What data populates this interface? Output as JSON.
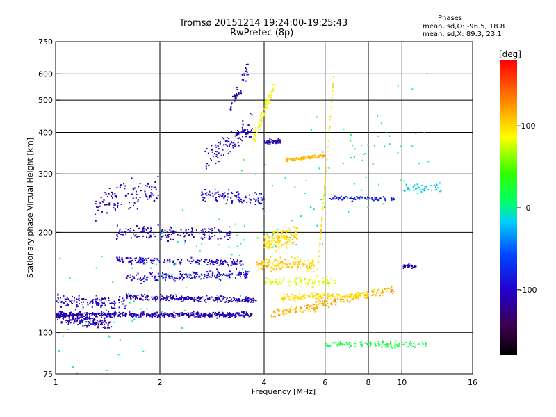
{
  "chart_data": {
    "type": "scatter",
    "title": "Tromsø 20151214 19:24:00-19:25:43",
    "subtitle": "RwPretec (8p)",
    "xlabel": "Frequency [MHz]",
    "ylabel": "Stationary phase Virtual Height [km]",
    "x_scale": "log",
    "y_scale": "log",
    "xlim": [
      1,
      16
    ],
    "ylim": [
      75,
      750
    ],
    "x_ticks": [
      1,
      2,
      4,
      6,
      8,
      10,
      16
    ],
    "y_ticks": [
      75,
      100,
      200,
      300,
      400,
      500,
      600,
      750
    ],
    "x_gridlines": [
      2,
      4,
      6,
      8,
      10
    ],
    "y_gridlines": [
      100,
      200,
      300,
      400,
      500,
      600
    ],
    "grid": true,
    "phase_box": {
      "heading": "Phases",
      "line_o": "mean, sd,O: -96.5, 18.8",
      "line_x": "mean, sd,X: 89.3, 23.1"
    },
    "colorbar": {
      "label": "[deg]",
      "range": [
        -180,
        180
      ],
      "ticks": [
        100,
        0,
        -100
      ],
      "placement": "right"
    },
    "traces": [
      {
        "name": "",
        "x_from": 1.0,
        "x_to": 3.7,
        "y_from": 113,
        "y_to": 113,
        "phase": -110,
        "spread": 0.012,
        "n": 480
      },
      {
        "name": "",
        "x_from": 1.0,
        "x_to": 1.45,
        "y_from": 112,
        "y_to": 106,
        "phase": -110,
        "spread": 0.025,
        "n": 160
      },
      {
        "name": "",
        "x_from": 1.0,
        "x_to": 1.6,
        "y_from": 125,
        "y_to": 122,
        "phase": -105,
        "spread": 0.03,
        "n": 120
      },
      {
        "name": "",
        "x_from": 1.6,
        "x_to": 3.8,
        "y_from": 128,
        "y_to": 125,
        "phase": -108,
        "spread": 0.012,
        "n": 240
      },
      {
        "name": "",
        "x_from": 1.6,
        "x_to": 3.6,
        "y_from": 145,
        "y_to": 150,
        "phase": -95,
        "spread": 0.02,
        "n": 200
      },
      {
        "name": "",
        "x_from": 1.5,
        "x_to": 3.5,
        "y_from": 165,
        "y_to": 162,
        "phase": -100,
        "spread": 0.015,
        "n": 180
      },
      {
        "name": "",
        "x_from": 1.5,
        "x_to": 3.2,
        "y_from": 200,
        "y_to": 198,
        "phase": -105,
        "spread": 0.03,
        "n": 150
      },
      {
        "name": "",
        "x_from": 1.3,
        "x_to": 2.0,
        "y_from": 240,
        "y_to": 270,
        "phase": -110,
        "spread": 0.06,
        "n": 110
      },
      {
        "name": "",
        "x_from": 2.6,
        "x_to": 4.0,
        "y_from": 260,
        "y_to": 250,
        "phase": -95,
        "spread": 0.03,
        "n": 110
      },
      {
        "name": "",
        "x_from": 2.7,
        "x_to": 3.7,
        "y_from": 330,
        "y_to": 420,
        "phase": -105,
        "spread": 0.05,
        "n": 110
      },
      {
        "name": "",
        "x_from": 3.2,
        "x_to": 3.6,
        "y_from": 480,
        "y_to": 620,
        "phase": -110,
        "spread": 0.04,
        "n": 40
      },
      {
        "name": "",
        "x_from": 3.7,
        "x_to": 4.3,
        "y_from": 370,
        "y_to": 560,
        "phase": 90,
        "spread": 0.03,
        "n": 80
      },
      {
        "name": "",
        "x_from": 4.0,
        "x_to": 4.5,
        "y_from": 375,
        "y_to": 375,
        "phase": -110,
        "spread": 0.01,
        "n": 50
      },
      {
        "name": "",
        "x_from": 4.6,
        "x_to": 6.0,
        "y_from": 330,
        "y_to": 340,
        "phase": 115,
        "spread": 0.008,
        "n": 90
      },
      {
        "name": "",
        "x_from": 4.0,
        "x_to": 5.0,
        "y_from": 185,
        "y_to": 200,
        "phase": 100,
        "spread": 0.04,
        "n": 160
      },
      {
        "name": "",
        "x_from": 3.8,
        "x_to": 5.6,
        "y_from": 160,
        "y_to": 160,
        "phase": 105,
        "spread": 0.03,
        "n": 150
      },
      {
        "name": "",
        "x_from": 4.2,
        "x_to": 9.5,
        "y_from": 113,
        "y_to": 135,
        "phase": 115,
        "spread": 0.02,
        "n": 210
      },
      {
        "name": "",
        "x_from": 4.5,
        "x_to": 8.0,
        "y_from": 127,
        "y_to": 130,
        "phase": 100,
        "spread": 0.015,
        "n": 150
      },
      {
        "name": "",
        "x_from": 4.0,
        "x_to": 6.5,
        "y_from": 142,
        "y_to": 142,
        "phase": 80,
        "spread": 0.02,
        "n": 90
      },
      {
        "name": "",
        "x_from": 6.2,
        "x_to": 9.5,
        "y_from": 253,
        "y_to": 253,
        "phase": -80,
        "spread": 0.01,
        "n": 80
      },
      {
        "name": "",
        "x_from": 10.0,
        "x_to": 13.0,
        "y_from": 272,
        "y_to": 272,
        "phase": -20,
        "spread": 0.02,
        "n": 40
      },
      {
        "name": "",
        "x_from": 6.0,
        "x_to": 12.0,
        "y_from": 92,
        "y_to": 92,
        "phase": 20,
        "spread": 0.015,
        "n": 110
      },
      {
        "name": "",
        "x_from": 5.7,
        "x_to": 6.4,
        "y_from": 150,
        "y_to": 640,
        "phase": 100,
        "spread": 0.01,
        "n": 70
      },
      {
        "name": "",
        "x_from": 10.0,
        "x_to": 11.0,
        "y_from": 158,
        "y_to": 158,
        "phase": -110,
        "spread": 0.01,
        "n": 25
      },
      {
        "name": "",
        "x_from": 1.0,
        "x_to": 12.0,
        "y_from": 90,
        "y_to": 450,
        "phase": 0,
        "spread": 0.3,
        "n": 160
      }
    ]
  }
}
